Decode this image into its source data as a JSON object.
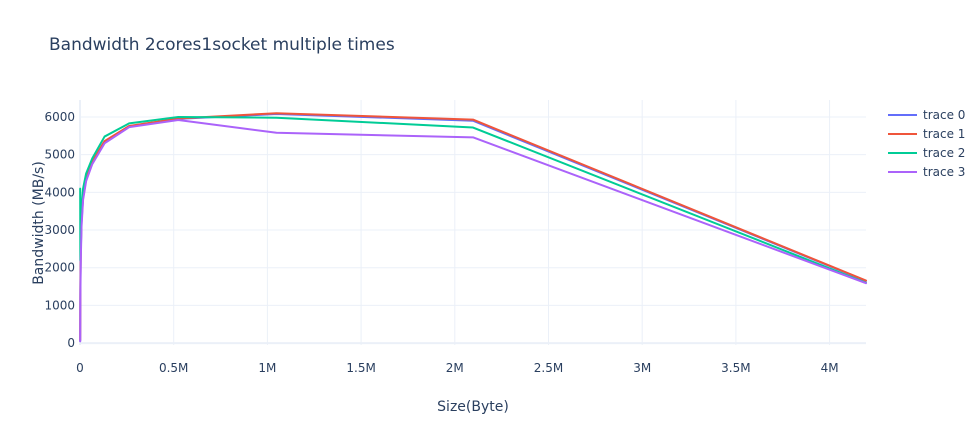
{
  "chart_data": {
    "type": "line",
    "title": "Bandwidth 2cores1socket multiple times",
    "xlabel": "Size(Byte)",
    "ylabel": "Bandwidth (MB/s)",
    "xlim": [
      0,
      4194304
    ],
    "ylim": [
      -50,
      6450
    ],
    "x_ticks": [
      {
        "value": 0,
        "label": "0"
      },
      {
        "value": 500000,
        "label": "0.5M"
      },
      {
        "value": 1000000,
        "label": "1M"
      },
      {
        "value": 1500000,
        "label": "1.5M"
      },
      {
        "value": 2000000,
        "label": "2M"
      },
      {
        "value": 2500000,
        "label": "2.5M"
      },
      {
        "value": 3000000,
        "label": "3M"
      },
      {
        "value": 3500000,
        "label": "3.5M"
      },
      {
        "value": 4000000,
        "label": "4M"
      }
    ],
    "y_ticks": [
      {
        "value": 0,
        "label": "0"
      },
      {
        "value": 1000,
        "label": "1000"
      },
      {
        "value": 2000,
        "label": "2000"
      },
      {
        "value": 3000,
        "label": "3000"
      },
      {
        "value": 4000,
        "label": "4000"
      },
      {
        "value": 5000,
        "label": "5000"
      },
      {
        "value": 6000,
        "label": "6000"
      }
    ],
    "grid": true,
    "legend_position": "top-right",
    "series": [
      {
        "name": "trace 0",
        "color": "#636efa",
        "x": [
          1024,
          2048,
          4096,
          8192,
          16384,
          32768,
          65536,
          131072,
          262144,
          524288,
          1048576,
          2097152,
          4194304
        ],
        "y": [
          50,
          1400,
          2400,
          3200,
          3850,
          4350,
          4800,
          5350,
          5750,
          5950,
          6080,
          5900,
          1650
        ]
      },
      {
        "name": "trace 1",
        "color": "#ef553b",
        "x": [
          1024,
          2048,
          4096,
          8192,
          16384,
          32768,
          65536,
          131072,
          262144,
          524288,
          1048576,
          2097152,
          4194304
        ],
        "y": [
          80,
          1500,
          2500,
          3300,
          3900,
          4400,
          4820,
          5360,
          5760,
          5960,
          6100,
          5930,
          1660
        ]
      },
      {
        "name": "trace 2",
        "color": "#00cc96",
        "x": [
          1024,
          2048,
          4096,
          8192,
          16384,
          32768,
          65536,
          131072,
          262144,
          524288,
          1048576,
          2097152,
          4194304
        ],
        "y": [
          4100,
          2200,
          2900,
          3600,
          4100,
          4500,
          4900,
          5480,
          5830,
          6000,
          5980,
          5720,
          1600
        ]
      },
      {
        "name": "trace 3",
        "color": "#ab63fa",
        "x": [
          1024,
          2048,
          4096,
          8192,
          16384,
          32768,
          65536,
          131072,
          262144,
          524288,
          1048576,
          2097152,
          4194304
        ],
        "y": [
          50,
          1200,
          2200,
          3100,
          3800,
          4300,
          4750,
          5300,
          5730,
          5920,
          5580,
          5460,
          1590
        ]
      }
    ]
  }
}
